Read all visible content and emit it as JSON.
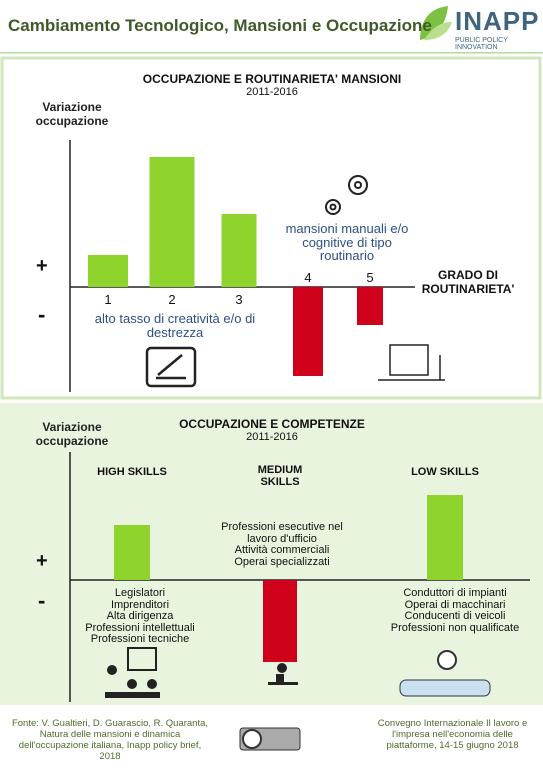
{
  "header": {
    "title": "Cambiamento Tecnologico, Mansioni e Occupazione",
    "logo": "INAPP",
    "tagline": "PUBLIC POLICY INNOVATION"
  },
  "chart_data": [
    {
      "type": "bar",
      "title": "OCCUPAZIONE E ROUTINARIETA' MANSIONI",
      "subtitle": "2011-2016",
      "y_label": "Variazione occupazione",
      "plus_sign": "+",
      "minus_sign": "-",
      "x_label": "GRADO DI ROUTINARIETA'",
      "categories": [
        "1",
        "2",
        "3",
        "4",
        "5"
      ],
      "values": [
        32,
        130,
        73,
        -89,
        -38
      ],
      "colors": [
        "#8ed42c",
        "#8ed42c",
        "#8ed42c",
        "#d0021b",
        "#d0021b"
      ],
      "ylim": [
        -100,
        185
      ],
      "annotations": [
        {
          "lines": [
            "alto tasso di creatività e/o di destrezza"
          ]
        },
        {
          "lines": [
            "mansioni manuali e/o cognitive di tipo routinario"
          ]
        }
      ]
    },
    {
      "type": "bar",
      "title": "OCCUPAZIONE E COMPETENZE",
      "subtitle": "2011-2016",
      "y_label": "Variazione occupazione",
      "plus_sign": "+",
      "minus_sign": "-",
      "categories": [
        "HIGH SKILLS",
        "MEDIUM SKILLS",
        "LOW SKILLS"
      ],
      "values": [
        55,
        -82,
        85
      ],
      "colors": [
        "#8ed42c",
        "#d0021b",
        "#8ed42c"
      ],
      "ylim": [
        -110,
        160
      ],
      "annotations": [
        {
          "lines": [
            "Legislatori",
            "Imprenditori",
            "Alta dirigenza",
            "Professioni intellettuali",
            "Professioni tecniche"
          ]
        },
        {
          "lines": [
            "Professioni esecutive nel lavoro d'ufficio",
            "Attività commerciali",
            "Operai specializzati"
          ]
        },
        {
          "lines": [
            "Conduttori di impianti",
            "Operai di macchinari",
            "Conducenti di veicoli",
            "Professioni non qualificate"
          ]
        }
      ]
    }
  ],
  "footer": {
    "source": "Fonte: V. Gualtieri, D. Guarascio, R. Quaranta, Natura delle mansioni e dinamica dell'occupazione italiana, Inapp policy brief, 2018",
    "event": "Convegno Internazionale Il lavoro e l'impresa nell'economia delle piattaforme, 14-15 giugno 2018"
  }
}
